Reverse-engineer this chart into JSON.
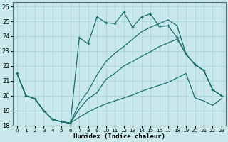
{
  "title": "",
  "xlabel": "Humidex (Indice chaleur)",
  "xlim": [
    -0.5,
    23.5
  ],
  "ylim": [
    18,
    26.3
  ],
  "yticks": [
    18,
    19,
    20,
    21,
    22,
    23,
    24,
    25,
    26
  ],
  "xticks": [
    0,
    1,
    2,
    3,
    4,
    5,
    6,
    7,
    8,
    9,
    10,
    11,
    12,
    13,
    14,
    15,
    16,
    17,
    18,
    19,
    20,
    21,
    22,
    23
  ],
  "bg_color": "#c8e8ec",
  "line_color": "#1a6e6a",
  "grid_color": "#b0d8dc",
  "line_top_x": [
    0,
    1,
    2,
    3,
    4,
    5,
    6,
    7,
    8,
    9,
    10,
    11,
    12,
    13,
    14,
    15,
    16,
    17,
    18,
    19,
    20,
    21,
    22,
    23
  ],
  "line_top_y": [
    21.5,
    20.0,
    19.8,
    19.0,
    18.4,
    18.25,
    18.15,
    23.9,
    23.5,
    25.3,
    24.9,
    24.85,
    25.6,
    24.6,
    25.3,
    25.5,
    24.65,
    24.7,
    23.9,
    22.8,
    22.1,
    21.7,
    20.4,
    20.0
  ],
  "line_upper_x": [
    0,
    1,
    2,
    3,
    4,
    5,
    6,
    7,
    8,
    9,
    10,
    11,
    12,
    13,
    14,
    15,
    16,
    17,
    18,
    19,
    20,
    21,
    22,
    23
  ],
  "line_upper_y": [
    21.5,
    20.0,
    19.8,
    19.0,
    18.4,
    18.25,
    18.15,
    19.5,
    20.3,
    21.4,
    22.3,
    22.85,
    23.3,
    23.8,
    24.3,
    24.6,
    24.85,
    25.1,
    24.7,
    22.8,
    22.1,
    21.7,
    20.4,
    20.0
  ],
  "line_lower_x": [
    0,
    1,
    2,
    3,
    4,
    5,
    6,
    7,
    8,
    9,
    10,
    11,
    12,
    13,
    14,
    15,
    16,
    17,
    18,
    19,
    20,
    21,
    22,
    23
  ],
  "line_lower_y": [
    21.5,
    20.0,
    19.8,
    19.0,
    18.4,
    18.25,
    18.15,
    19.1,
    19.8,
    20.2,
    21.1,
    21.5,
    22.0,
    22.3,
    22.65,
    22.95,
    23.3,
    23.55,
    23.8,
    22.8,
    22.1,
    21.7,
    20.4,
    20.0
  ],
  "line_bottom_x": [
    0,
    1,
    2,
    3,
    4,
    5,
    6,
    7,
    8,
    9,
    10,
    11,
    12,
    13,
    14,
    15,
    16,
    17,
    18,
    19,
    20,
    21,
    22,
    23
  ],
  "line_bottom_y": [
    21.5,
    20.0,
    19.8,
    19.0,
    18.4,
    18.25,
    18.15,
    18.55,
    18.9,
    19.2,
    19.45,
    19.65,
    19.85,
    20.05,
    20.3,
    20.5,
    20.7,
    20.9,
    21.2,
    21.5,
    19.85,
    19.65,
    19.35,
    19.8
  ]
}
